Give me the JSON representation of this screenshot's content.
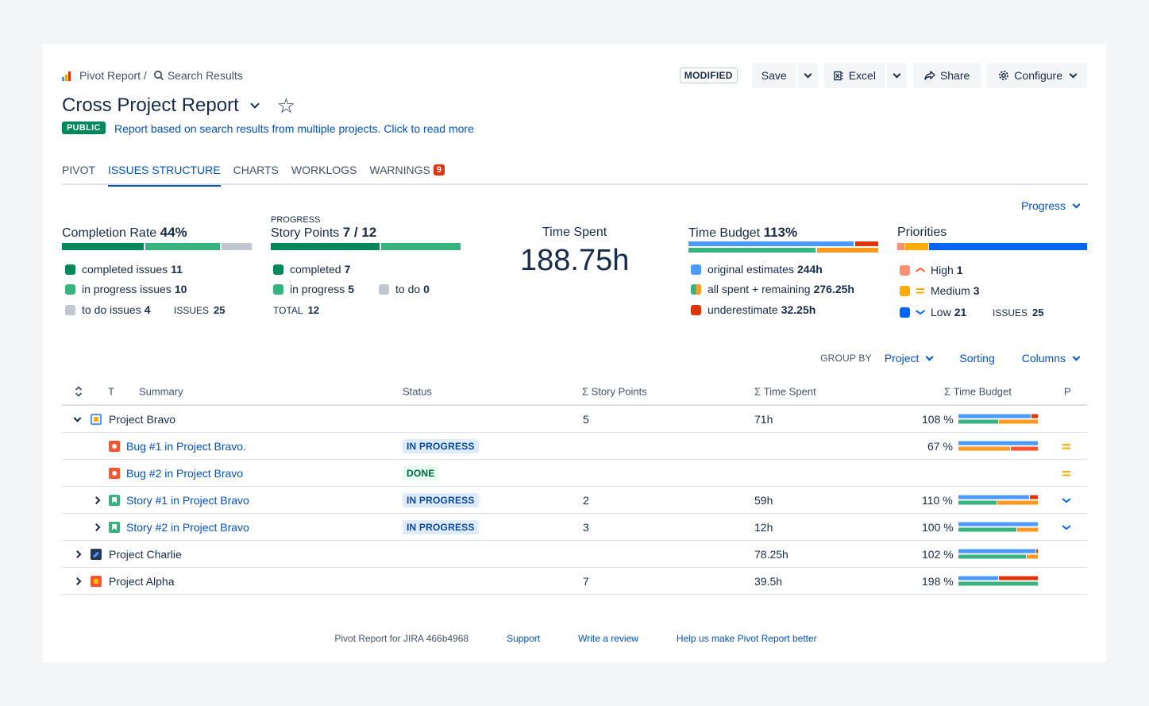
{
  "breadcrumbs": {
    "app": "Pivot Report /",
    "page": "Search Results"
  },
  "toolbar": {
    "modified": "MODIFIED",
    "save": "Save",
    "excel": "Excel",
    "share": "Share",
    "configure": "Configure"
  },
  "report": {
    "title": "Cross Project Report",
    "visibility": "PUBLIC",
    "description": "Report based on search results from multiple projects. Click to read more"
  },
  "tabs": [
    {
      "label": "PIVOT"
    },
    {
      "label": "ISSUES STRUCTURE"
    },
    {
      "label": "CHARTS"
    },
    {
      "label": "WORKLOGS"
    },
    {
      "label": "WARNINGS",
      "badge": "9"
    }
  ],
  "progress_dropdown": "Progress",
  "widgets": {
    "completion": {
      "title": "Completion Rate",
      "value": "44%",
      "completed_label": "completed issues",
      "completed": "11",
      "inprogress_label": "in progress issues",
      "inprogress": "10",
      "todo_label": "to do issues",
      "todo": "4",
      "issues_label": "ISSUES",
      "issues": "25",
      "colors": {
        "completed": "#00875a",
        "inprogress": "#36b37e",
        "todo": "#c1c7d0"
      }
    },
    "story_points": {
      "caption": "PROGRESS",
      "title": "Story Points",
      "value": "7 / 12",
      "completed_label": "completed",
      "completed": "7",
      "inprogress_label": "in progress",
      "inprogress": "5",
      "todo_label": "to do",
      "todo": "0",
      "total_label": "TOTAL",
      "total": "12"
    },
    "time_spent": {
      "title": "Time Spent",
      "value": "188.75h"
    },
    "time_budget": {
      "title": "Time Budget",
      "value": "113%",
      "original_label": "original estimates",
      "original": "244h",
      "spent_label": "all spent + remaining",
      "spent": "276.25h",
      "under_label": "underestimate",
      "under": "32.25h",
      "colors": {
        "original": "#4c9aff",
        "spent": "#36b37e",
        "remaining": "#ff991f",
        "under": "#de350b"
      }
    },
    "priorities": {
      "title": "Priorities",
      "high_label": "High",
      "high": "1",
      "medium_label": "Medium",
      "medium": "3",
      "low_label": "Low",
      "low": "21",
      "issues_label": "ISSUES",
      "issues": "25",
      "colors": {
        "high": "#ff8f73",
        "medium": "#ffab00",
        "low": "#0065ff"
      }
    }
  },
  "groupby": {
    "label": "GROUP BY",
    "value": "Project",
    "sorting": "Sorting",
    "columns": "Columns"
  },
  "table": {
    "headers": {
      "type": "T",
      "summary": "Summary",
      "status": "Status",
      "story_points": "Σ Story Points",
      "time_spent": "Σ Time Spent",
      "time_budget": "Σ Time Budget",
      "priority": "P"
    },
    "rows": [
      {
        "summary": "Project Bravo",
        "status": "",
        "sp": "5",
        "ts": "71h",
        "tb": "108 %"
      },
      {
        "summary": "Bug #1 in Project Bravo.",
        "status": "IN PROGRESS",
        "sp": "",
        "ts": "",
        "tb": "67 %"
      },
      {
        "summary": "Bug #2 in Project Bravo",
        "status": "DONE",
        "sp": "",
        "ts": "",
        "tb": ""
      },
      {
        "summary": "Story #1 in Project Bravo",
        "status": "IN PROGRESS",
        "sp": "2",
        "ts": "59h",
        "tb": "110 %"
      },
      {
        "summary": "Story #2 in Project Bravo",
        "status": "IN PROGRESS",
        "sp": "3",
        "ts": "12h",
        "tb": "100 %"
      },
      {
        "summary": "Project Charlie",
        "status": "",
        "sp": "",
        "ts": "78.25h",
        "tb": "102 %"
      },
      {
        "summary": "Project Alpha",
        "status": "",
        "sp": "7",
        "ts": "39.5h",
        "tb": "198 %"
      }
    ]
  },
  "footer": {
    "version": "Pivot Report for JIRA 466b4968",
    "support": "Support",
    "review": "Write a review",
    "better": "Help us make Pivot Report better"
  }
}
